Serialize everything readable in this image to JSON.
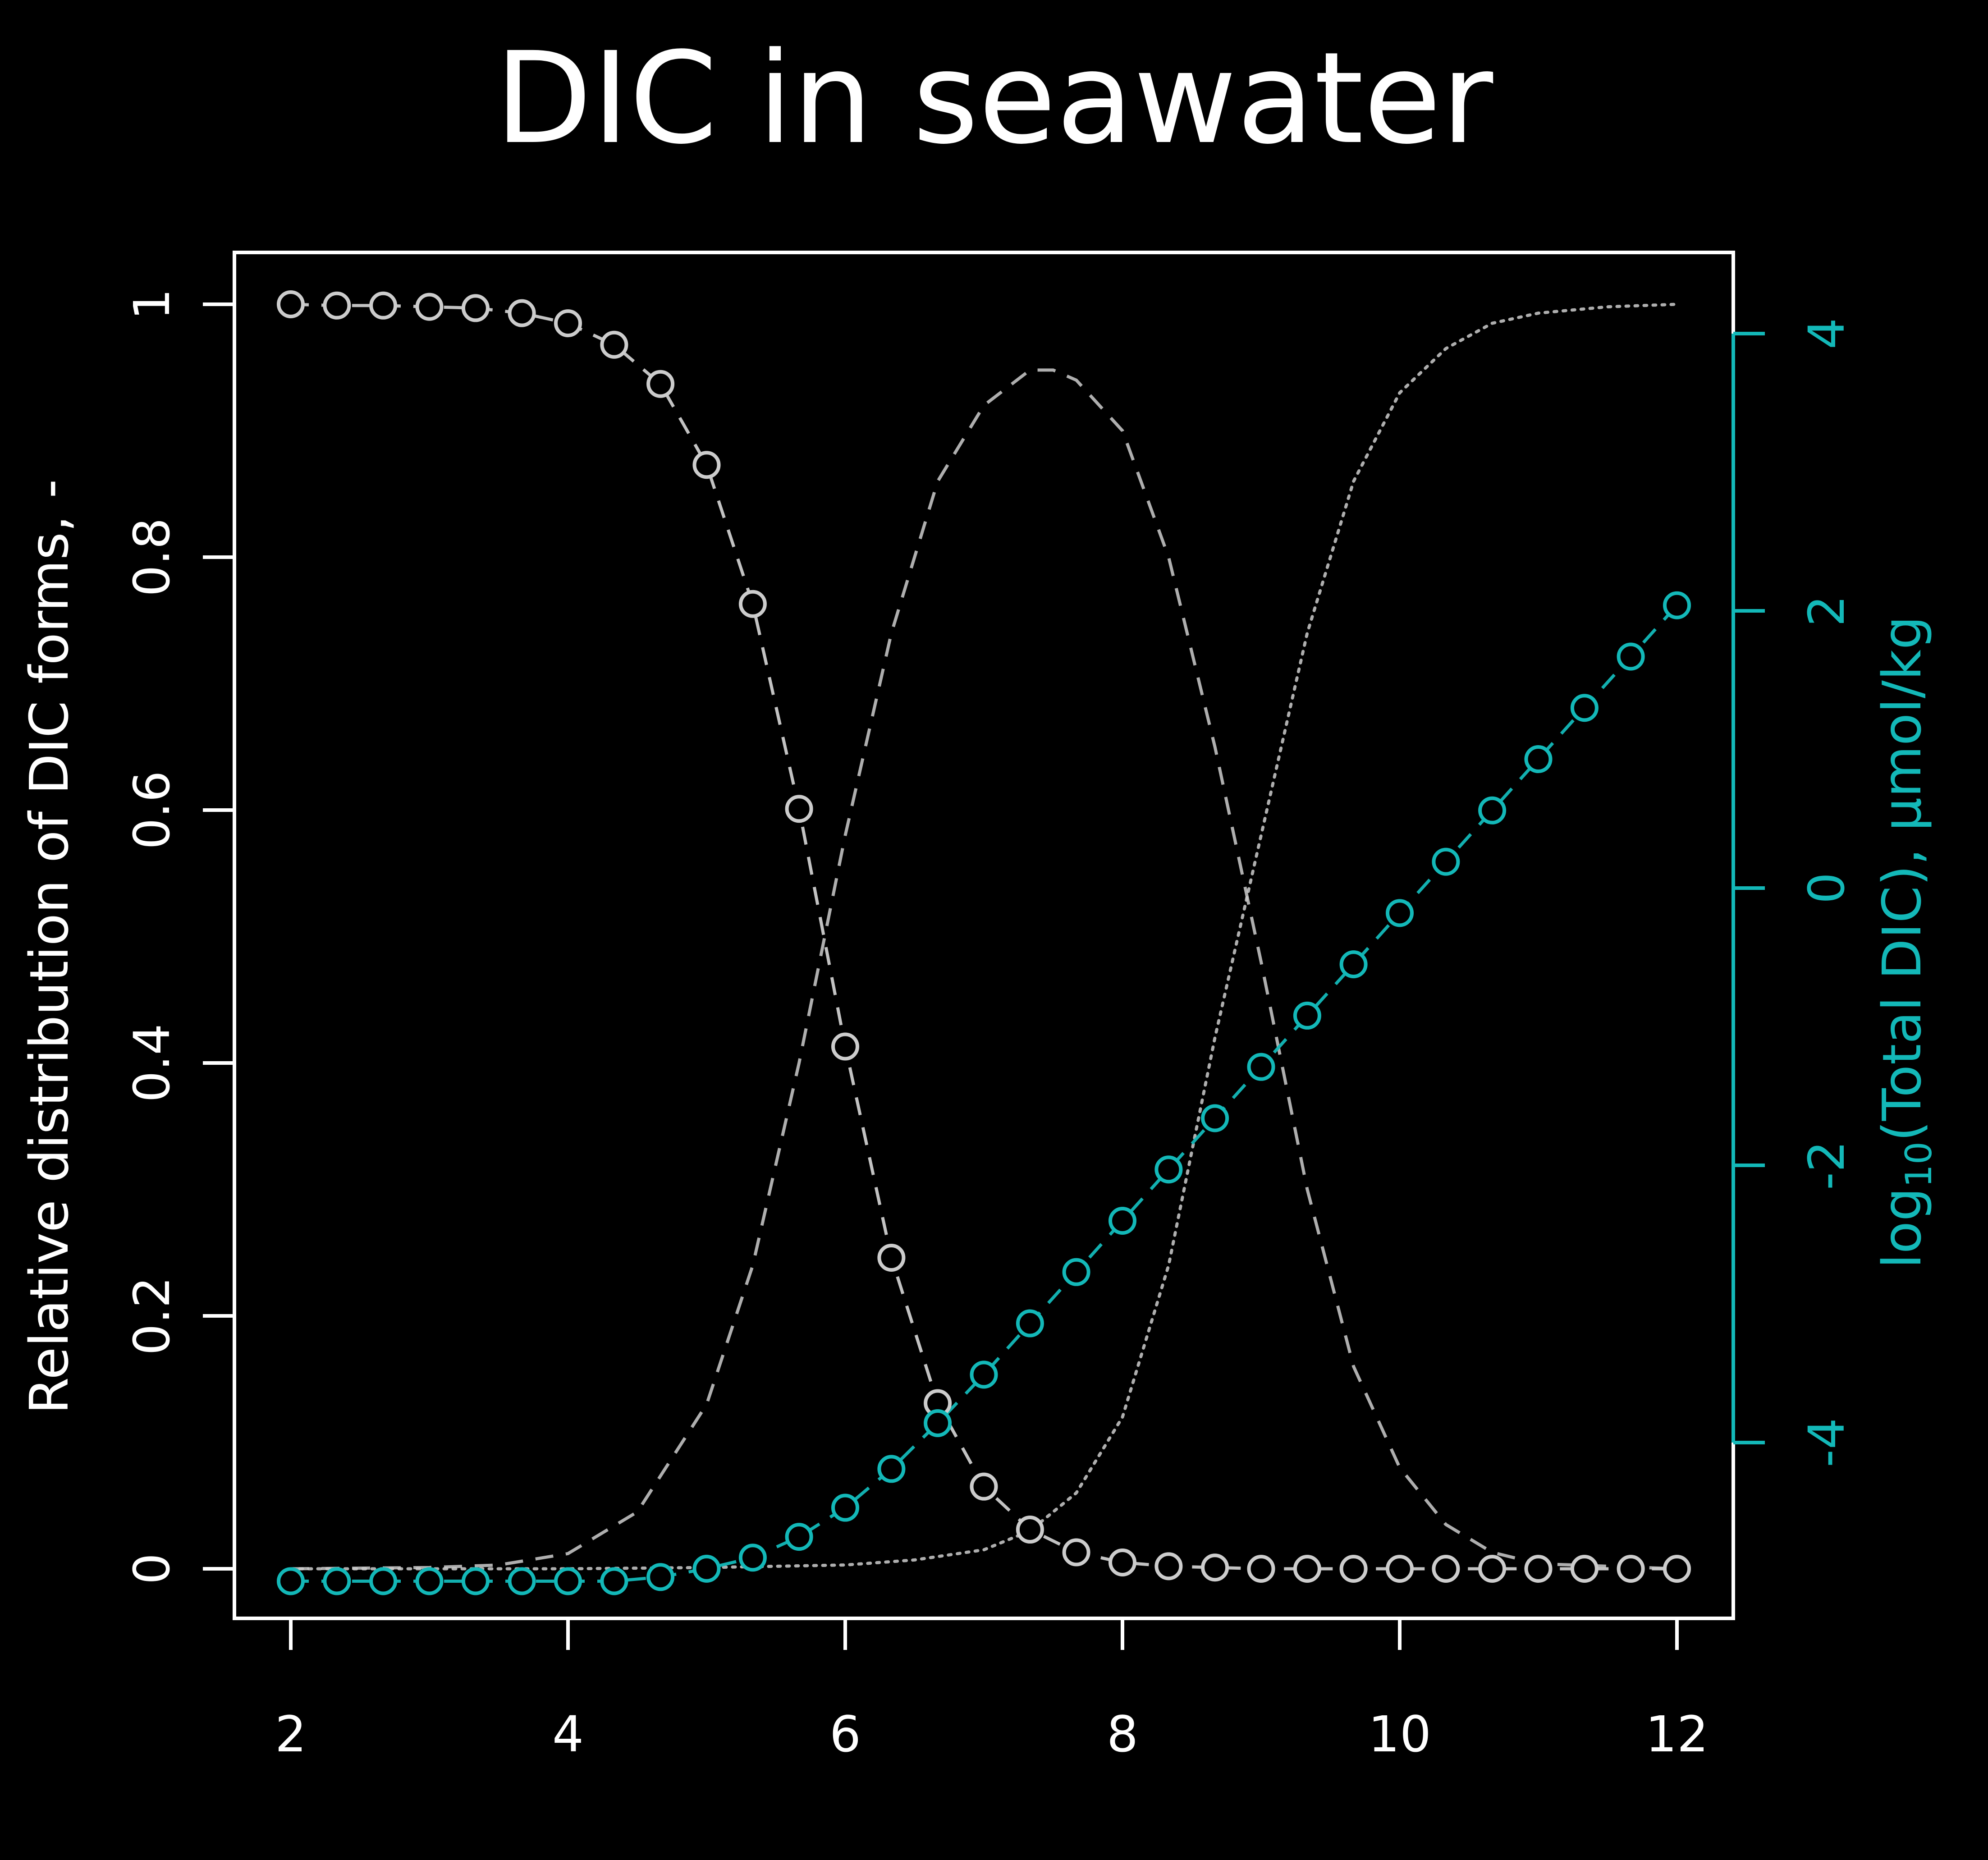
{
  "chart_data": {
    "type": "line",
    "title": "DIC in seawater",
    "xlabel": "",
    "ylabel": "Relative distribution of DIC forms, -",
    "y2label_prefix": "log",
    "y2label_subscript": "10",
    "y2label_suffix": "(Total DIC), µmol/kg",
    "xlim": [
      2,
      12
    ],
    "ylim": [
      0,
      1
    ],
    "y2lim": [
      -5.0,
      4.2
    ],
    "x_ticks": [
      2,
      4,
      6,
      8,
      10,
      12
    ],
    "x_tick_labels": [
      "2",
      "4",
      "6",
      "8",
      "10",
      "12"
    ],
    "y_ticks": [
      0,
      0.2,
      0.4,
      0.6,
      0.8,
      1
    ],
    "y_tick_labels": [
      "0",
      "0.2",
      "0.4",
      "0.6",
      "0.8",
      "1"
    ],
    "y2_ticks": [
      -4,
      -2,
      0,
      2,
      4
    ],
    "y2_tick_labels": [
      "-4",
      "-2",
      "0",
      "2",
      "4"
    ],
    "grid": false,
    "colors": {
      "background": "#000000",
      "foreground": "#ffffff",
      "series_gray": "#cccccc",
      "series_cyan": "#13b8b8"
    },
    "x": [
      2,
      2.333,
      2.667,
      3,
      3.333,
      3.667,
      4,
      4.333,
      4.667,
      5,
      5.333,
      5.667,
      6,
      6.333,
      6.667,
      7,
      7.333,
      7.667,
      8,
      8.333,
      8.667,
      9,
      9.333,
      9.667,
      10,
      10.333,
      10.667,
      11,
      11.333,
      11.667,
      12
    ],
    "series": [
      {
        "axis": "left",
        "style": "points-dashed",
        "color": "#cccccc",
        "values": [
          1.0,
          0.999,
          0.999,
          0.998,
          0.997,
          0.993,
          0.985,
          0.968,
          0.937,
          0.873,
          0.763,
          0.601,
          0.413,
          0.246,
          0.131,
          0.065,
          0.031,
          0.013,
          0.005,
          0.002,
          0.001,
          0,
          0,
          0,
          0,
          0,
          0,
          0,
          0,
          0,
          0
        ]
      },
      {
        "axis": "left",
        "style": "dashed",
        "color": "#cccccc",
        "x": [
          2,
          3,
          3.5,
          4,
          4.5,
          5,
          5.333,
          5.667,
          6,
          6.333,
          6.667,
          7,
          7.333,
          7.5,
          7.667,
          8,
          8.333,
          8.667,
          9,
          9.333,
          9.667,
          10,
          10.333,
          10.667,
          11,
          12
        ],
        "values": [
          0,
          0.001,
          0.003,
          0.012,
          0.045,
          0.13,
          0.24,
          0.4,
          0.58,
          0.74,
          0.86,
          0.92,
          0.948,
          0.948,
          0.94,
          0.9,
          0.8,
          0.65,
          0.48,
          0.3,
          0.16,
          0.08,
          0.035,
          0.013,
          0.004,
          0
        ]
      },
      {
        "axis": "left",
        "style": "dotted",
        "color": "#cccccc",
        "x": [
          2,
          4,
          5,
          6,
          6.5,
          7,
          7.333,
          7.667,
          8,
          8.333,
          8.667,
          9,
          9.333,
          9.667,
          10,
          10.333,
          10.667,
          11,
          11.5,
          12
        ],
        "values": [
          0,
          0,
          0.001,
          0.003,
          0.007,
          0.015,
          0.03,
          0.06,
          0.12,
          0.24,
          0.42,
          0.58,
          0.74,
          0.86,
          0.93,
          0.965,
          0.985,
          0.993,
          0.998,
          1.0
        ]
      },
      {
        "axis": "right",
        "style": "points-dashed",
        "color": "#13b8b8",
        "values": [
          -5.0,
          -5.0,
          -5.0,
          -5.0,
          -5.0,
          -5.0,
          -5.0,
          -5.0,
          -4.97,
          -4.91,
          -4.83,
          -4.68,
          -4.47,
          -4.19,
          -3.86,
          -3.51,
          -3.14,
          -2.77,
          -2.4,
          -2.03,
          -1.66,
          -1.29,
          -0.92,
          -0.55,
          -0.18,
          0.19,
          0.56,
          0.93,
          1.3,
          1.67,
          2.04
        ]
      }
    ]
  }
}
